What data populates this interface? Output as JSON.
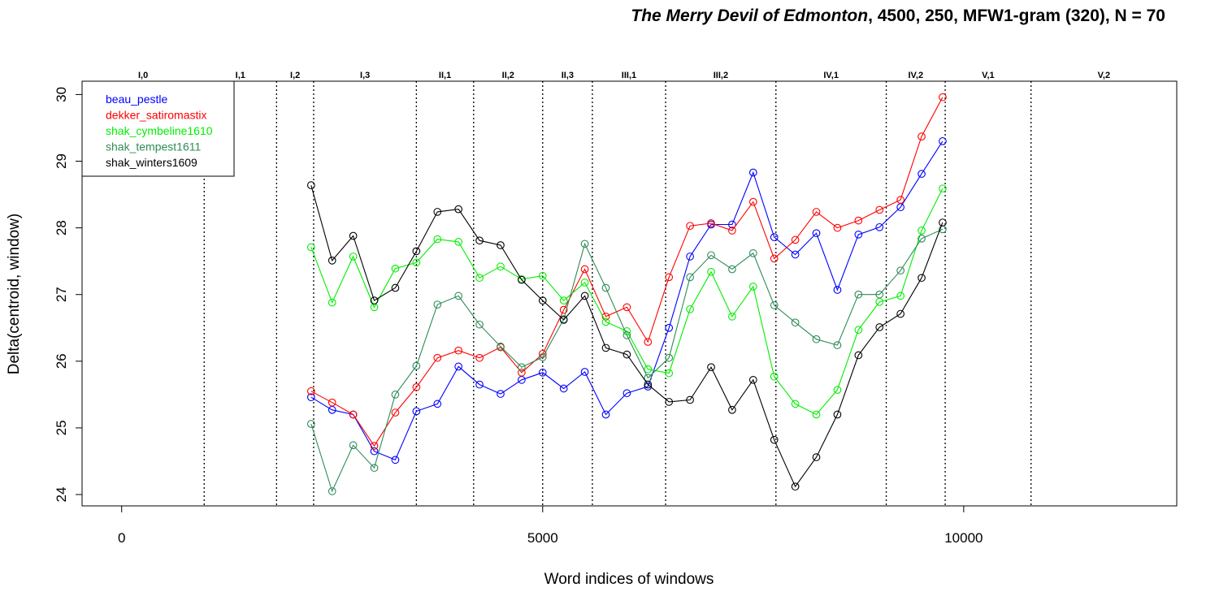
{
  "title": {
    "play": "The Merry Devil of Edmonton",
    "rest": ", 4500, 250, MFW1-gram (320), N = 70"
  },
  "chart_data": {
    "type": "line",
    "xlabel": "Word indices of windows",
    "ylabel": "Delta(centroid, window)",
    "xlim": [
      -470,
      12530
    ],
    "ylim": [
      23.83,
      30.2
    ],
    "xticks": [
      0,
      5000,
      10000
    ],
    "yticks": [
      24,
      25,
      26,
      27,
      28,
      29,
      30
    ],
    "grid": false,
    "legend_position": "top-left",
    "x": [
      2250,
      2500,
      2750,
      3000,
      3250,
      3500,
      3750,
      4000,
      4250,
      4500,
      4750,
      5000,
      5250,
      5500,
      5750,
      6000,
      6250,
      6500,
      6750,
      7000,
      7250,
      7500,
      7750,
      8000,
      8250,
      8500,
      8750,
      9000,
      9250,
      9500,
      9750
    ],
    "series": [
      {
        "name": "beau_pestle",
        "color": "#0000ff",
        "values": [
          25.46,
          25.27,
          25.2,
          24.65,
          24.52,
          25.25,
          25.36,
          25.92,
          25.65,
          25.51,
          25.72,
          25.83,
          25.59,
          25.84,
          25.2,
          25.52,
          25.62,
          26.5,
          27.57,
          28.05,
          28.05,
          28.83,
          27.86,
          27.6,
          27.92,
          27.07,
          27.9,
          28.01,
          28.31,
          28.81,
          29.3
        ]
      },
      {
        "name": "dekker_satiromastix",
        "color": "#ff0000",
        "values": [
          25.55,
          25.38,
          25.2,
          24.73,
          25.23,
          25.61,
          26.05,
          26.16,
          26.05,
          26.21,
          25.83,
          26.11,
          26.77,
          27.38,
          26.67,
          26.81,
          26.29,
          27.26,
          28.03,
          28.07,
          27.96,
          28.39,
          27.54,
          27.82,
          28.24,
          28.0,
          28.11,
          28.27,
          28.42,
          29.37,
          29.96
        ]
      },
      {
        "name": "shak_cymbeline1610",
        "color": "#00ee00",
        "values": [
          27.71,
          26.88,
          27.57,
          26.81,
          27.39,
          27.48,
          27.83,
          27.79,
          27.25,
          27.42,
          27.23,
          27.28,
          26.91,
          27.18,
          26.59,
          26.45,
          25.88,
          25.82,
          26.78,
          27.34,
          26.67,
          27.12,
          25.77,
          25.36,
          25.2,
          25.57,
          26.47,
          26.89,
          26.98,
          27.96,
          28.59
        ]
      },
      {
        "name": "shak_tempest1611",
        "color": "#2e8b57",
        "values": [
          25.06,
          24.05,
          24.74,
          24.4,
          25.5,
          25.93,
          26.85,
          26.98,
          26.55,
          26.22,
          25.91,
          26.06,
          26.63,
          27.76,
          27.1,
          26.39,
          25.75,
          26.05,
          27.26,
          27.59,
          27.38,
          27.62,
          26.84,
          26.58,
          26.33,
          26.24,
          27.0,
          27.0,
          27.36,
          27.84,
          27.98
        ]
      },
      {
        "name": "shak_winters1609",
        "color": "#000000",
        "values": [
          28.64,
          27.51,
          27.88,
          26.91,
          27.1,
          27.65,
          28.24,
          28.28,
          27.81,
          27.74,
          27.22,
          26.91,
          26.62,
          26.98,
          26.2,
          26.1,
          25.65,
          25.39,
          25.42,
          25.91,
          25.27,
          25.72,
          24.82,
          24.12,
          24.56,
          25.2,
          26.09,
          26.51,
          26.71,
          27.25,
          28.08
        ]
      }
    ],
    "act_scenes": [
      {
        "label": "I,0",
        "start": -470,
        "end": 980
      },
      {
        "label": "I,1",
        "start": 980,
        "end": 1840
      },
      {
        "label": "I,2",
        "start": 1840,
        "end": 2280
      },
      {
        "label": "I,3",
        "start": 2280,
        "end": 3500
      },
      {
        "label": "II,1",
        "start": 3500,
        "end": 4180
      },
      {
        "label": "II,2",
        "start": 4180,
        "end": 5000
      },
      {
        "label": "II,3",
        "start": 5000,
        "end": 5590
      },
      {
        "label": "III,1",
        "start": 5590,
        "end": 6460
      },
      {
        "label": "III,2",
        "start": 6460,
        "end": 7770
      },
      {
        "label": "IV,1",
        "start": 7770,
        "end": 9080
      },
      {
        "label": "IV,2",
        "start": 9080,
        "end": 9780
      },
      {
        "label": "V,1",
        "start": 9780,
        "end": 10800
      },
      {
        "label": "V,2",
        "start": 10800,
        "end": 12530
      }
    ]
  }
}
